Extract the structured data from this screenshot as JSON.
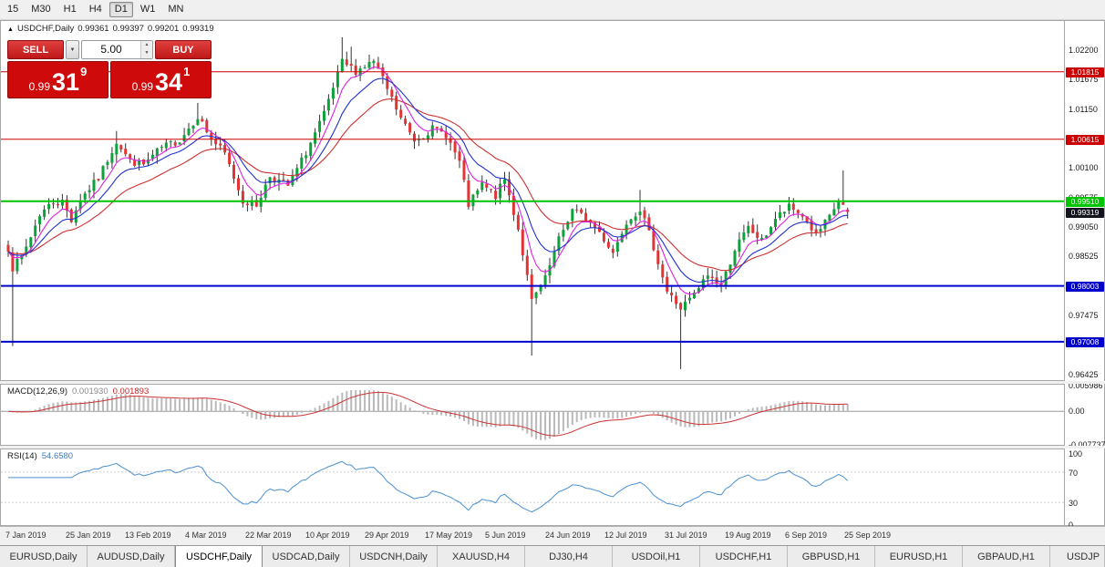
{
  "toolbar": {
    "timeframes": [
      {
        "label": "15",
        "active": false
      },
      {
        "label": "M30",
        "active": false
      },
      {
        "label": "H1",
        "active": false
      },
      {
        "label": "H4",
        "active": false
      },
      {
        "label": "D1",
        "active": true
      },
      {
        "label": "W1",
        "active": false
      },
      {
        "label": "MN",
        "active": false
      }
    ]
  },
  "header": {
    "marker": "▲",
    "symbol": "USDCHF,Daily",
    "open": "0.99361",
    "high": "0.99397",
    "low": "0.99201",
    "close": "0.99319"
  },
  "trade_panel": {
    "sell_label": "SELL",
    "buy_label": "BUY",
    "volume": "5.00",
    "dropdown_icon": "▼",
    "spinner_up": "▲",
    "spinner_down": "▼",
    "sell_price_big": "0.99",
    "sell_price_pips": "31",
    "sell_price_sup": "9",
    "buy_price_big": "0.99",
    "buy_price_pips": "34",
    "buy_price_sup": "1"
  },
  "chart_data": {
    "type": "candlestick",
    "symbol": "USDCHF",
    "timeframe": "Daily",
    "price_top": 1.0272,
    "price_bottom": 0.96324,
    "candle_count": 187,
    "seed": 7,
    "anchors": [
      [
        0,
        0.9868
      ],
      [
        1,
        0.9832
      ],
      [
        3,
        0.9852
      ],
      [
        5,
        0.9888
      ],
      [
        7,
        0.9928
      ],
      [
        10,
        0.995
      ],
      [
        12,
        0.995
      ],
      [
        14,
        0.9918
      ],
      [
        16,
        0.9955
      ],
      [
        20,
        0.9992
      ],
      [
        24,
        1.0058
      ],
      [
        27,
        1.0022
      ],
      [
        30,
        1.0016
      ],
      [
        34,
        1.0046
      ],
      [
        38,
        1.006
      ],
      [
        42,
        1.0103
      ],
      [
        45,
        1.0062
      ],
      [
        48,
        1.0035
      ],
      [
        52,
        0.9952
      ],
      [
        55,
        0.9944
      ],
      [
        58,
        0.9996
      ],
      [
        62,
        0.9978
      ],
      [
        66,
        1.0038
      ],
      [
        70,
        1.0105
      ],
      [
        74,
        1.0198
      ],
      [
        77,
        1.0183
      ],
      [
        81,
        1.02
      ],
      [
        84,
        1.015
      ],
      [
        87,
        1.0098
      ],
      [
        90,
        1.006
      ],
      [
        94,
        1.008
      ],
      [
        97,
        1.007
      ],
      [
        100,
        1.002
      ],
      [
        102,
        0.9944
      ],
      [
        105,
        0.998
      ],
      [
        108,
        0.996
      ],
      [
        110,
        0.999
      ],
      [
        113,
        0.9902
      ],
      [
        116,
        0.9772
      ],
      [
        119,
        0.9812
      ],
      [
        122,
        0.9882
      ],
      [
        125,
        0.9936
      ],
      [
        128,
        0.992
      ],
      [
        131,
        0.9896
      ],
      [
        134,
        0.986
      ],
      [
        137,
        0.9916
      ],
      [
        140,
        0.9938
      ],
      [
        143,
        0.987
      ],
      [
        146,
        0.979
      ],
      [
        149,
        0.976
      ],
      [
        152,
        0.9784
      ],
      [
        155,
        0.982
      ],
      [
        158,
        0.98
      ],
      [
        161,
        0.9866
      ],
      [
        164,
        0.9903
      ],
      [
        167,
        0.988
      ],
      [
        170,
        0.992
      ],
      [
        173,
        0.994
      ],
      [
        176,
        0.9926
      ],
      [
        179,
        0.989
      ],
      [
        182,
        0.9922
      ],
      [
        184,
        0.9952
      ],
      [
        186,
        0.9932
      ]
    ],
    "spikes": [
      {
        "i": 1,
        "low": 0.9693
      },
      {
        "i": 24,
        "high": 1.0076
      },
      {
        "i": 42,
        "high": 1.0126
      },
      {
        "i": 74,
        "high": 1.0243
      },
      {
        "i": 76,
        "high": 1.0226
      },
      {
        "i": 110,
        "high": 0.9996
      },
      {
        "i": 116,
        "low": 0.9676
      },
      {
        "i": 140,
        "high": 0.9971
      },
      {
        "i": 149,
        "low": 0.9652
      },
      {
        "i": 185,
        "high": 1.0006
      }
    ],
    "last": {
      "o": 0.99361,
      "h": 0.99397,
      "l": 0.99201,
      "c": 0.99319
    },
    "levels": [
      {
        "price": 1.01815,
        "color": "#cc0000",
        "width": 1,
        "label": "1.01815"
      },
      {
        "price": 1.00615,
        "color": "#cc0000",
        "width": 1,
        "label": "1.00615"
      },
      {
        "price": 0.9951,
        "color": "#00c400",
        "width": 2,
        "label": "0.99510"
      },
      {
        "price": 0.98003,
        "color": "#0000cd",
        "width": 2,
        "label": "0.98003"
      },
      {
        "price": 0.97008,
        "color": "#0000cd",
        "width": 2,
        "label": "0.97008"
      }
    ],
    "current_price": {
      "price": 0.99319,
      "label": "0.99319",
      "color": "#14141e"
    },
    "axis_ticks": [
      "1.02200",
      "1.01675",
      "1.01150",
      "1.00625",
      "1.00100",
      "0.99575",
      "0.99050",
      "0.98525",
      "0.98000",
      "0.97475",
      "0.96950",
      "0.96425"
    ],
    "colors": {
      "up": "#0ba23a",
      "down": "#e23434",
      "wick": "#333333",
      "ma_fast": "#e020e0",
      "ma_mid": "#2030d0",
      "ma_slow": "#d03030"
    },
    "ma_periods": {
      "fast": 6,
      "mid": 12,
      "slow": 24
    }
  },
  "macd": {
    "name": "MACD(12,26,9)",
    "value": "0.001930",
    "signal_value": "0.001893",
    "axis_labels": [
      "0.005986",
      "0.00",
      "-0.007737"
    ],
    "scale_top": 0.0062,
    "scale_bottom": -0.0078,
    "bar_color": "#b9b9b9",
    "signal_color": "#cc3333"
  },
  "rsi": {
    "name": "RSI(14)",
    "value": "54.6580",
    "period": 14,
    "axis_labels": [
      "100",
      "70",
      "30",
      "0"
    ],
    "levels": [
      70,
      30
    ],
    "line_color": "#4a90d2"
  },
  "date_axis": {
    "step_candles": 13.28,
    "labels": [
      "7 Jan 2019",
      "25 Jan 2019",
      "13 Feb 2019",
      "4 Mar 2019",
      "22 Mar 2019",
      "10 Apr 2019",
      "29 Apr 2019",
      "17 May 2019",
      "5 Jun 2019",
      "24 Jun 2019",
      "12 Jul 2019",
      "31 Jul 2019",
      "19 Aug 2019",
      "6 Sep 2019",
      "25 Sep 2019"
    ]
  },
  "tabs": {
    "items": [
      {
        "label": "EURUSD,Daily",
        "active": false
      },
      {
        "label": "AUDUSD,Daily",
        "active": false
      },
      {
        "label": "USDCHF,Daily",
        "active": true
      },
      {
        "label": "USDCAD,Daily",
        "active": false
      },
      {
        "label": "USDCNH,Daily",
        "active": false
      },
      {
        "label": "XAUUSD,H4",
        "active": false
      },
      {
        "label": "DJ30,H4",
        "active": false
      },
      {
        "label": "USDOil,H1",
        "active": false
      },
      {
        "label": "USDCHF,H1",
        "active": false
      },
      {
        "label": "GBPUSD,H1",
        "active": false
      },
      {
        "label": "EURUSD,H1",
        "active": false
      },
      {
        "label": "GBPAUD,H1",
        "active": false
      },
      {
        "label": "USDJP",
        "active": false
      }
    ]
  }
}
